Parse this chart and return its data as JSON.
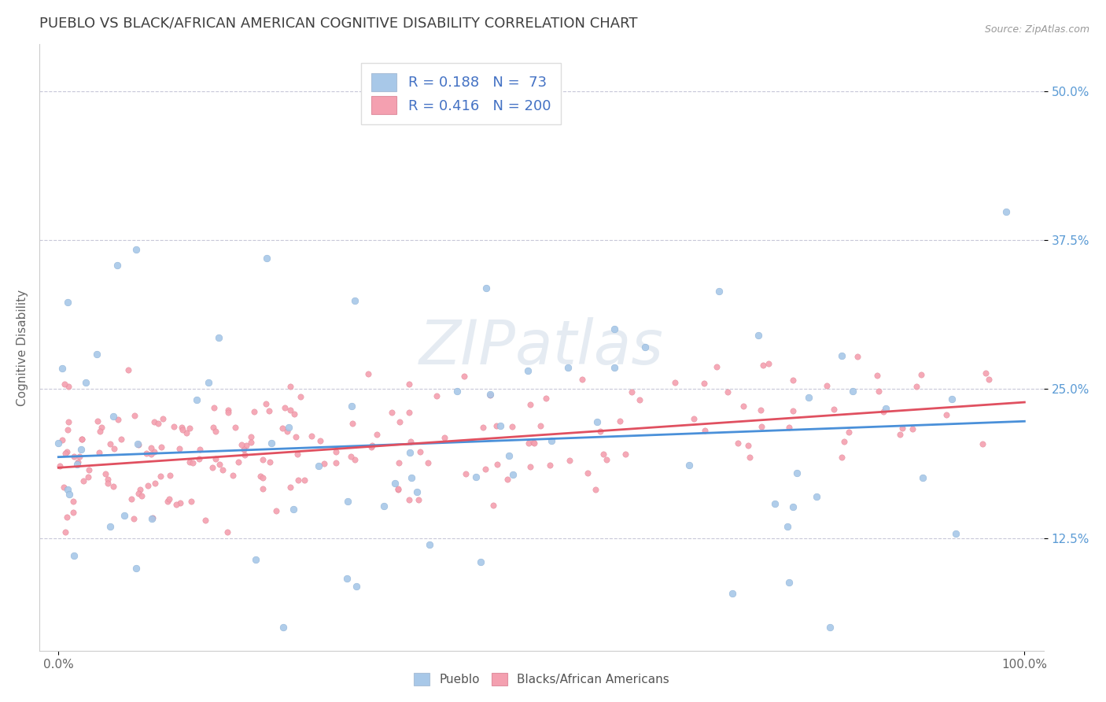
{
  "title": "PUEBLO VS BLACK/AFRICAN AMERICAN COGNITIVE DISABILITY CORRELATION CHART",
  "source_text": "Source: ZipAtlas.com",
  "ylabel": "Cognitive Disability",
  "watermark": "ZIPatlas",
  "legend_r1": "R = 0.188",
  "legend_n1": "N =  73",
  "legend_r2": "R = 0.416",
  "legend_n2": "N = 200",
  "xlim": [
    -0.02,
    1.02
  ],
  "ylim": [
    0.03,
    0.54
  ],
  "yticks": [
    0.125,
    0.25,
    0.375,
    0.5
  ],
  "ytick_labels": [
    "12.5%",
    "25.0%",
    "37.5%",
    "50.0%"
  ],
  "xticks": [
    0.0,
    1.0
  ],
  "xtick_labels": [
    "0.0%",
    "100.0%"
  ],
  "color_pueblo": "#a8c8e8",
  "color_black": "#f4a0b0",
  "trendline_pueblo": "#4a90d9",
  "trendline_black": "#e05060",
  "background_color": "#ffffff",
  "grid_color": "#c8c8d8",
  "title_color": "#404040",
  "title_fontsize": 13,
  "label_fontsize": 11,
  "tick_fontsize": 11,
  "legend_fontsize": 13,
  "pueblo_seed": 42,
  "black_seed": 7
}
